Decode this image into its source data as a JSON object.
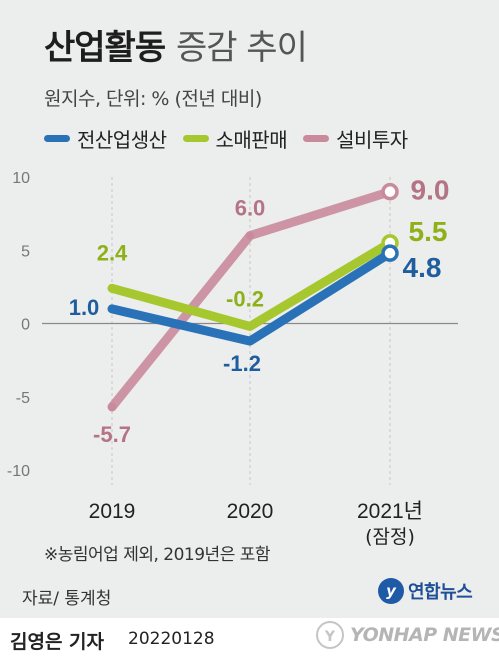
{
  "header": {
    "title_bold": "산업활동",
    "title_light": "증감 추이",
    "subtitle": "원지수, 단위: % (전년 대비)"
  },
  "colors": {
    "production": "#2a72b8",
    "retail": "#a6c72e",
    "investment": "#c98a9c",
    "axis_text": "#777777",
    "grid": "#c8c8c8"
  },
  "chart_data": {
    "type": "line",
    "categories": [
      "2019",
      "2020",
      "2021년"
    ],
    "category_sublabels": [
      "",
      "",
      "(잠정)"
    ],
    "ylim": [
      -10,
      10
    ],
    "yticks": [
      10,
      5,
      0,
      -5,
      -10
    ],
    "ytick_labels": [
      "10",
      "5",
      "0",
      "-5",
      "-10"
    ],
    "grid": "vertical dashed at categories, solid zero line",
    "series": [
      {
        "name": "전산업생산",
        "values": [
          1.0,
          -1.2,
          4.8
        ],
        "labels": [
          "1.0",
          "-1.2",
          "4.8"
        ],
        "color": "#2a72b8"
      },
      {
        "name": "소매판매",
        "values": [
          2.4,
          -0.2,
          5.5
        ],
        "labels": [
          "2.4",
          "-0.2",
          "5.5"
        ],
        "color": "#a6c72e"
      },
      {
        "name": "설비투자",
        "values": [
          -5.7,
          6.0,
          9.0
        ],
        "labels": [
          "-5.7",
          "6.0",
          "9.0"
        ],
        "color": "#c98a9c"
      }
    ]
  },
  "footnote": "※농림어업 제외, 2019년은 포함",
  "source": "자료/ 통계청",
  "agency": {
    "mark": "y",
    "name": "연합뉴스"
  },
  "footer": {
    "author": "김영은 기자",
    "date": "20220128",
    "logo_mark": "Y",
    "logo_text": "YONHAP NEWS"
  }
}
